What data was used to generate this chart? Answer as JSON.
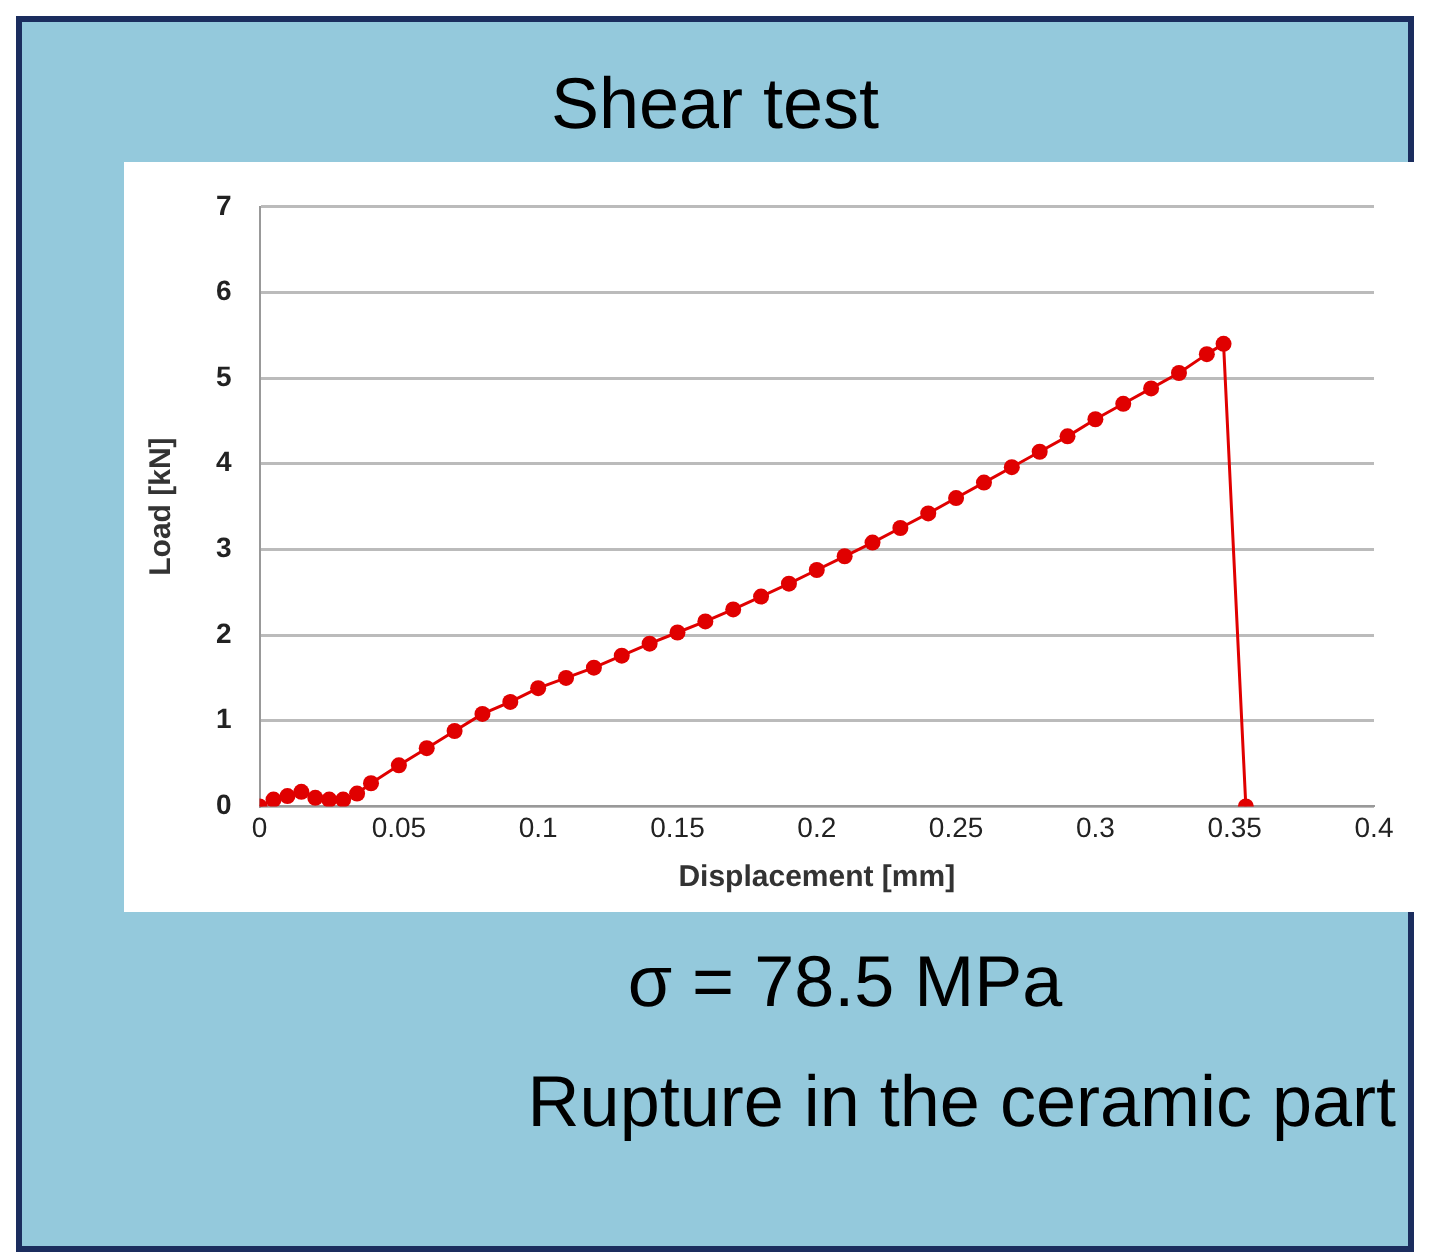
{
  "chart_data": {
    "type": "line",
    "title": "Shear test",
    "xlabel": "Displacement [mm]",
    "ylabel": "Load [kN]",
    "annotations": [
      "σ = 78.5 MPa",
      "Rupture in the ceramic part"
    ],
    "series": [
      {
        "color": "#e00000",
        "x": [
          0,
          0.005,
          0.01,
          0.015,
          0.02,
          0.025,
          0.03,
          0.035,
          0.04,
          0.05,
          0.06,
          0.07,
          0.08,
          0.09,
          0.1,
          0.11,
          0.12,
          0.13,
          0.14,
          0.15,
          0.16,
          0.17,
          0.18,
          0.19,
          0.2,
          0.21,
          0.22,
          0.23,
          0.24,
          0.25,
          0.26,
          0.27,
          0.28,
          0.29,
          0.3,
          0.31,
          0.32,
          0.33,
          0.34,
          0.346,
          0.354
        ],
        "values": [
          0,
          0.08,
          0.12,
          0.17,
          0.1,
          0.08,
          0.08,
          0.15,
          0.27,
          0.48,
          0.68,
          0.88,
          1.08,
          1.22,
          1.38,
          1.5,
          1.62,
          1.76,
          1.9,
          2.03,
          2.16,
          2.3,
          2.45,
          2.6,
          2.76,
          2.92,
          3.08,
          3.25,
          3.42,
          3.6,
          3.78,
          3.96,
          4.14,
          4.32,
          4.52,
          4.7,
          4.88,
          5.06,
          5.28,
          5.4,
          0
        ]
      }
    ],
    "xlim": [
      0,
      0.4
    ],
    "xticks": [
      0,
      0.05,
      0.1,
      0.15,
      0.2,
      0.25,
      0.3,
      0.35,
      0.4
    ],
    "ylim": [
      0,
      7
    ],
    "yticks": [
      0,
      1,
      2,
      3,
      4,
      5,
      6,
      7
    ],
    "grid": "y",
    "legend": false,
    "marker": "circle",
    "line_style": "solid"
  }
}
